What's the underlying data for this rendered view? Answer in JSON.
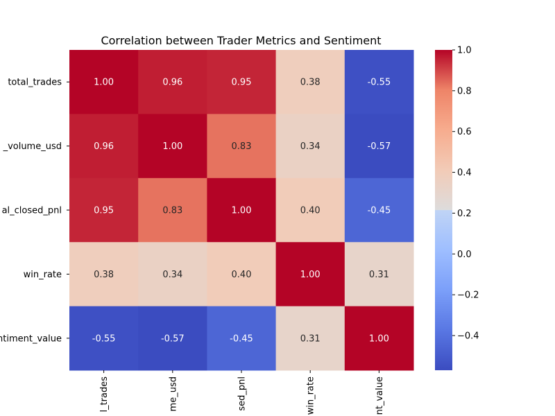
{
  "chart_data": {
    "type": "heatmap",
    "title": "Correlation between Trader Metrics and Sentiment",
    "row_labels": [
      "total_trades",
      "_volume_usd",
      "al_closed_pnl",
      "win_rate",
      "ntiment_value"
    ],
    "col_labels": [
      "l_trades",
      "me_usd",
      "sed_pnl",
      "win_rate",
      "nt_value"
    ],
    "values": [
      [
        1.0,
        0.96,
        0.95,
        0.38,
        -0.55
      ],
      [
        0.96,
        1.0,
        0.83,
        0.34,
        -0.57
      ],
      [
        0.95,
        0.83,
        1.0,
        0.4,
        -0.45
      ],
      [
        0.38,
        0.34,
        0.4,
        1.0,
        0.31
      ],
      [
        -0.55,
        -0.57,
        -0.45,
        0.31,
        1.0
      ]
    ],
    "colormap": "coolwarm",
    "vmin": -0.57,
    "vmax": 1.0,
    "annotations_format": "0.00",
    "colorbar_ticks": [
      1.0,
      0.8,
      0.6,
      0.4,
      0.2,
      0.0,
      -0.2,
      -0.4
    ],
    "colorbar_tick_labels": [
      "1.0",
      "0.8",
      "0.6",
      "0.4",
      "0.2",
      "0.0",
      "−0.2",
      "−0.4"
    ]
  }
}
